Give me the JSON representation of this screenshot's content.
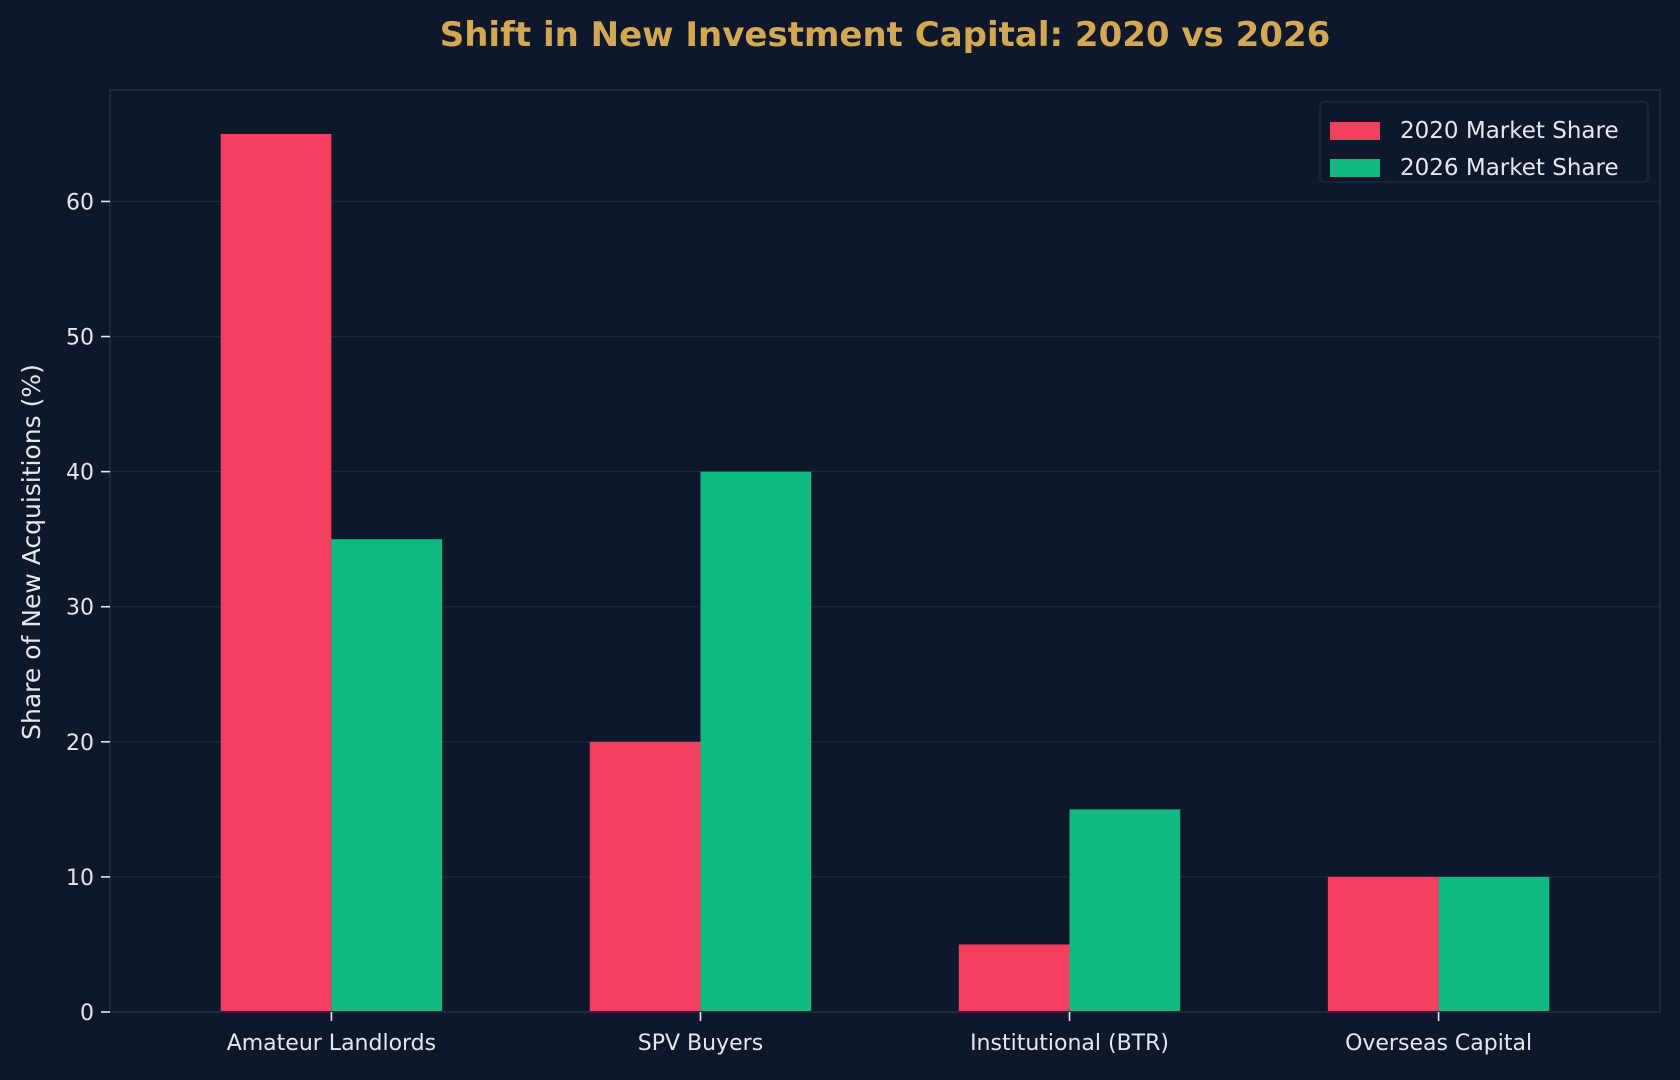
{
  "chart_data": {
    "type": "bar",
    "title": "Shift in New Investment Capital: 2020 vs 2026",
    "xlabel": "",
    "ylabel": "Share of New Acquisitions (%)",
    "categories": [
      "Amateur Landlords",
      "SPV Buyers",
      "Institutional (BTR)",
      "Overseas Capital"
    ],
    "series": [
      {
        "name": "2020 Market Share",
        "values": [
          65,
          20,
          5,
          10
        ],
        "color": "#f43f5e"
      },
      {
        "name": "2026 Market Share",
        "values": [
          35,
          40,
          15,
          10
        ],
        "color": "#10b981"
      }
    ],
    "ylim": [
      0,
      68.25
    ],
    "yticks": [
      0,
      10,
      20,
      30,
      40,
      50,
      60
    ],
    "grid": true,
    "legend_position": "top-right"
  },
  "colors": {
    "background": "#0f172a",
    "title": "#d4a853",
    "text": "#e2e8f0",
    "grid": "#1e293b",
    "spine": "#1e293b"
  }
}
